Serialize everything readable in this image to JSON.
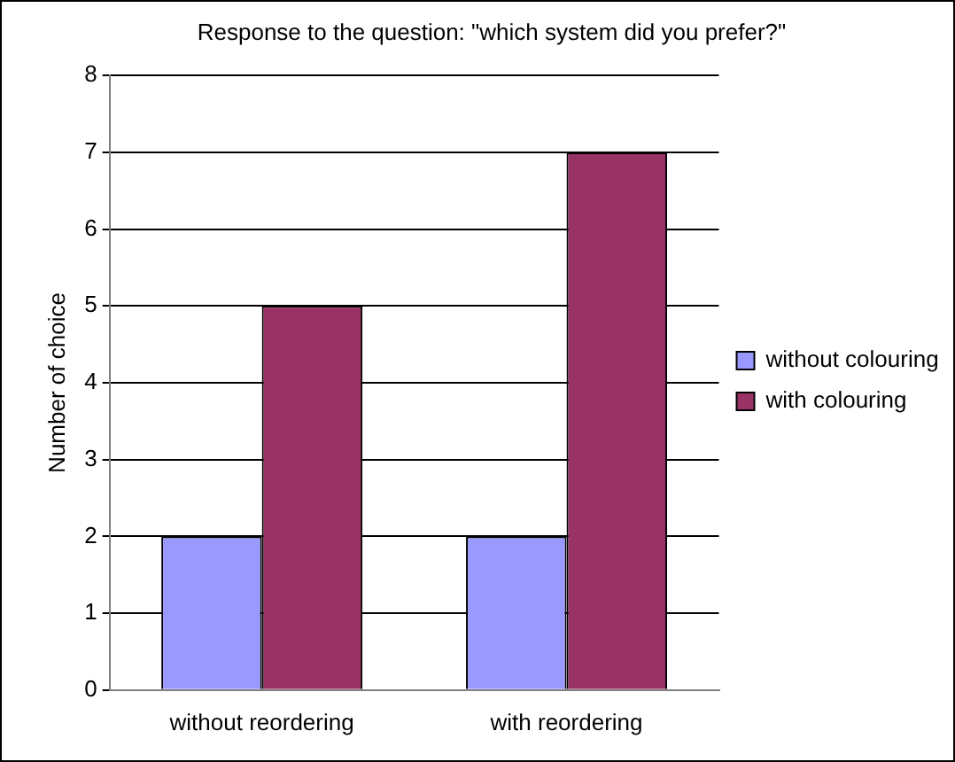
{
  "chart_data": {
    "type": "bar",
    "title": "Response to the question: \"which system did you prefer?\"",
    "ylabel": "Number of choice",
    "categories": [
      "without reordering",
      "with reordering"
    ],
    "series": [
      {
        "name": "without colouring",
        "color": "#9999ff",
        "values": [
          2,
          2
        ]
      },
      {
        "name": "with colouring",
        "color": "#993366",
        "values": [
          5,
          7
        ]
      }
    ],
    "ylim": [
      0,
      8
    ],
    "yticks": [
      0,
      1,
      2,
      3,
      4,
      5,
      6,
      7,
      8
    ],
    "grid": "y",
    "legend": "right"
  }
}
